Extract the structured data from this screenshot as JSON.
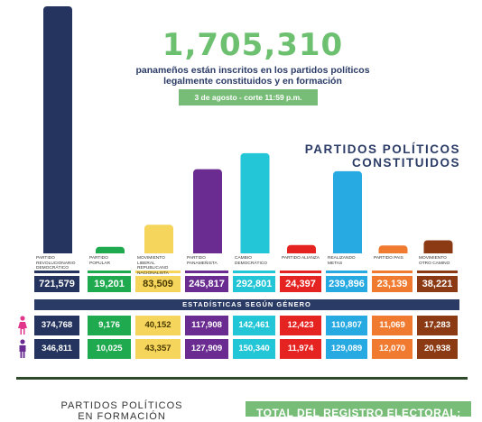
{
  "header": {
    "total": "1,705,310",
    "line1": "panameños están inscritos en los partidos políticos",
    "line2": "legalmente constituidos y en formación",
    "date": "3 de agosto - corte 11:59 p.m."
  },
  "section_title": {
    "line1": "PARTIDOS POLÍTICOS",
    "line2": "CONSTITUIDOS"
  },
  "stats_title": "ESTADÍSTICAS SEGÚN GÉNERO",
  "footer": {
    "left_line1": "PARTIDOS POLÍTICOS",
    "left_line2": "EN FORMACIÓN",
    "right": "TOTAL DEL REGISTRO ELECTORAL:"
  },
  "gender_icons": [
    "female-icon",
    "male-icon"
  ],
  "chart_data": {
    "type": "bar",
    "categories": [
      "PARTIDO REVOLUCIONARIO DEMOCRÁTICO",
      "PARTIDO POPULAR",
      "MOVIMIENTO LIBERAL REPUBLICANO NACIONALISTA",
      "PARTIDO PANAMEÑISTA",
      "CAMBIO DEMOCRÁTICO",
      "PARTIDO ALIANZA",
      "REALIZANDO METAS",
      "PARTIDO PAIS",
      "MOVIMIENTO OTRO CAMINO"
    ],
    "values": [
      721579,
      19201,
      83509,
      245817,
      292801,
      24397,
      239896,
      23139,
      38221
    ],
    "value_labels": [
      "721,579",
      "19,201",
      "83,509",
      "245,817",
      "292,801",
      "24,397",
      "239,896",
      "23,139",
      "38,221"
    ],
    "colors": [
      "#25345e",
      "#1faa4f",
      "#f6d55c",
      "#6a2c91",
      "#22c6d6",
      "#e52421",
      "#27a9e1",
      "#f07b30",
      "#8b3a14"
    ],
    "women": [
      "374,768",
      "9,176",
      "40,152",
      "117,908",
      "142,461",
      "12,423",
      "110,807",
      "11,069",
      "17,283"
    ],
    "men": [
      "346,811",
      "10,025",
      "43,357",
      "127,909",
      "150,340",
      "11,974",
      "129,089",
      "12,070",
      "20,938"
    ]
  }
}
